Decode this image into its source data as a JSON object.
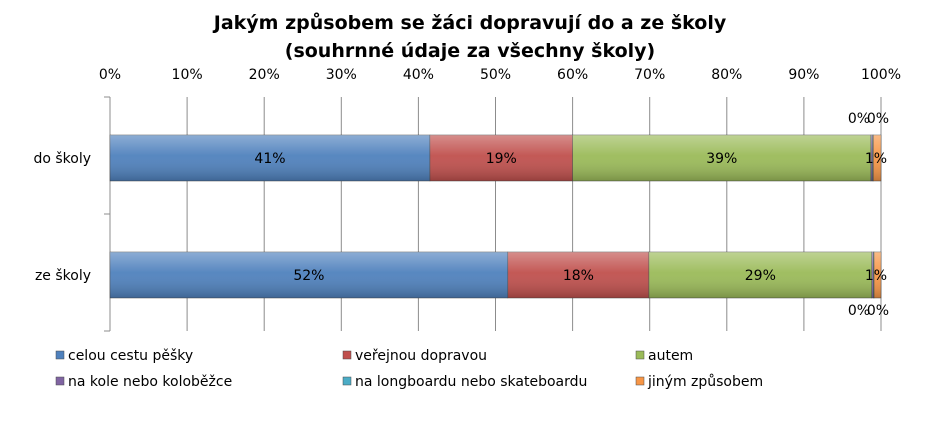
{
  "chart_data": {
    "type": "bar",
    "orientation": "horizontal",
    "stacked": "percent",
    "title": [
      "Jakým způsobem se žáci dopravují do a ze školy",
      "(souhrnné údaje za všechny školy)"
    ],
    "categories": [
      "do školy",
      "ze školy"
    ],
    "xlim": [
      0,
      100
    ],
    "x_ticks": [
      "0%",
      "10%",
      "20%",
      "30%",
      "40%",
      "50%",
      "60%",
      "70%",
      "80%",
      "90%",
      "100%"
    ],
    "grid": true,
    "legend_position": "bottom",
    "series": [
      {
        "name": "celou cestu pěšky",
        "color": "#4F81BD",
        "values": [
          41.5,
          51.6
        ],
        "labels": [
          "41%",
          "52%"
        ]
      },
      {
        "name": "veřejnou dopravou",
        "color": "#C0504D",
        "values": [
          18.5,
          18.3
        ],
        "labels": [
          "19%",
          "18%"
        ]
      },
      {
        "name": "autem",
        "color": "#9BBB59",
        "values": [
          38.7,
          28.9
        ],
        "labels": [
          "39%",
          "29%"
        ]
      },
      {
        "name": "na kole nebo koloběžce",
        "color": "#8064A2",
        "values": [
          0.2,
          0.2
        ],
        "labels": [
          "0%",
          "0%"
        ]
      },
      {
        "name": "na longboardu nebo skateboardu",
        "color": "#4BACC6",
        "values": [
          0.1,
          0.1
        ],
        "labels": [
          "0%",
          "0%"
        ]
      },
      {
        "name": "jiným způsobem",
        "color": "#F79646",
        "values": [
          1.0,
          0.9
        ],
        "labels": [
          "1%",
          "1%"
        ]
      }
    ]
  }
}
